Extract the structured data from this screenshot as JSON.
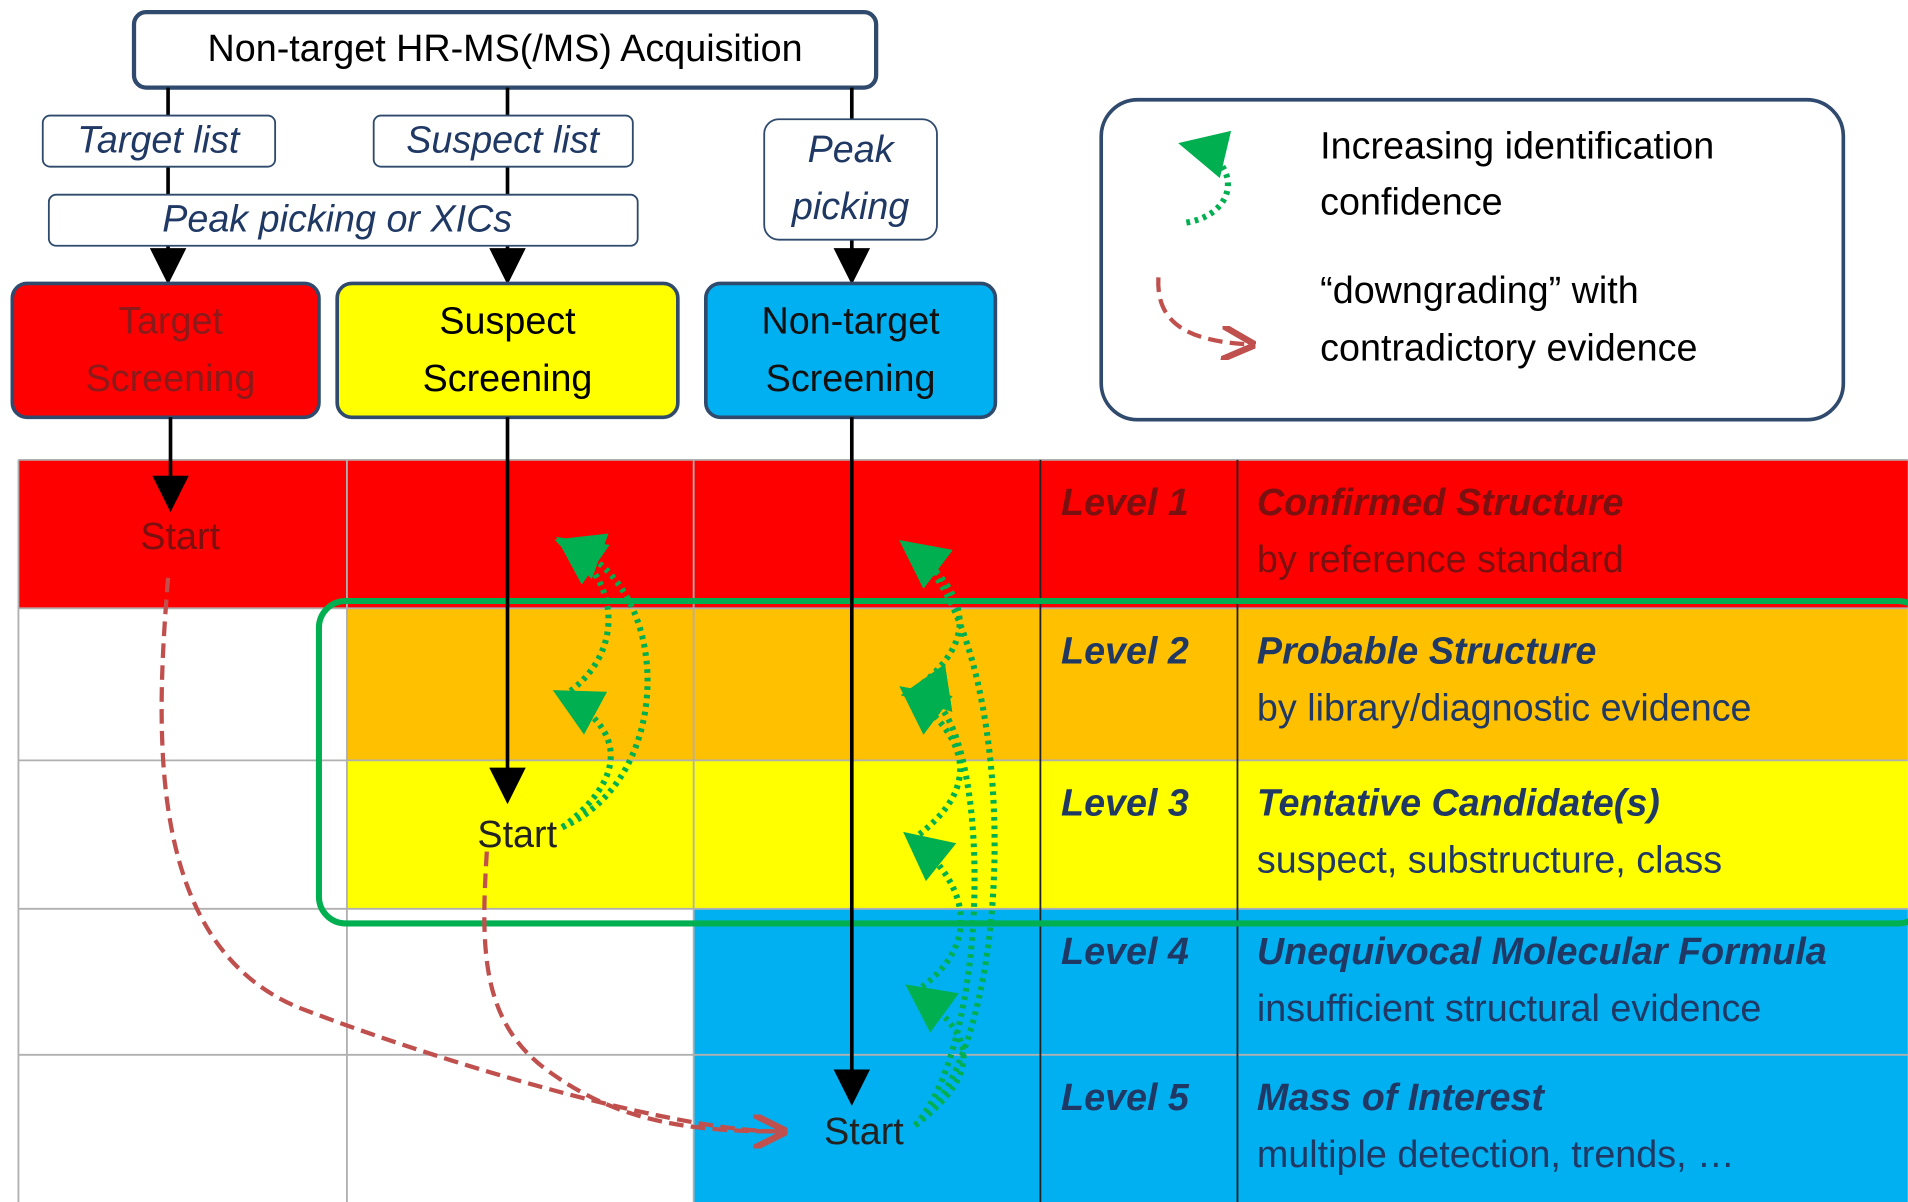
{
  "header": {
    "title": "Non-target HR-MS(/MS) Acquisition"
  },
  "inputs": {
    "target_list": "Target list",
    "suspect_list": "Suspect list",
    "peak_picking": [
      "Peak",
      "picking"
    ],
    "peak_picking_or_xics": "Peak picking or XICs"
  },
  "screening": [
    {
      "label": [
        "Target",
        "Screening"
      ]
    },
    {
      "label": [
        "Suspect",
        "Screening"
      ]
    },
    {
      "label": [
        "Non-target",
        "Screening"
      ]
    }
  ],
  "legend": {
    "increasing": [
      "Increasing identification",
      "confidence"
    ],
    "downgrading": [
      "“downgrading” with",
      "contradictory evidence"
    ]
  },
  "levels": [
    {
      "level": "Level 1",
      "title": "Confirmed Structure",
      "description": "by reference standard"
    },
    {
      "level": "Level 2",
      "title": "Probable Structure",
      "description": "by library/diagnostic evidence"
    },
    {
      "level": "Level 3",
      "title": "Tentative Candidate(s)",
      "description": "suspect, substructure, class"
    },
    {
      "level": "Level 4",
      "title": "Unequivocal Molecular Formula",
      "description": "insufficient structural evidence"
    },
    {
      "level": "Level 5",
      "title": "Mass of Interest",
      "description": "multiple detection, trends, …"
    }
  ],
  "start_labels": [
    "Start",
    "Start",
    "Start"
  ]
}
